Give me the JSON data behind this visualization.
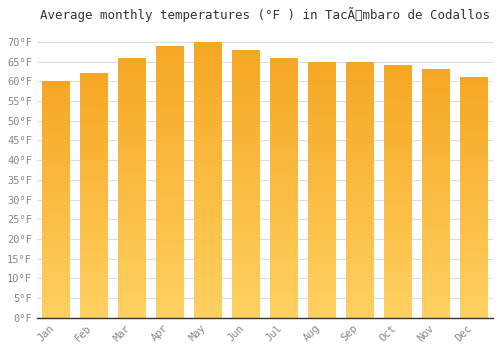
{
  "title": "Average monthly temperatures (°F ) in TacÃmbaro de Codallos",
  "months": [
    "Jan",
    "Feb",
    "Mar",
    "Apr",
    "May",
    "Jun",
    "Jul",
    "Aug",
    "Sep",
    "Oct",
    "Nov",
    "Dec"
  ],
  "values": [
    60,
    62,
    66,
    69,
    70,
    68,
    66,
    65,
    65,
    64,
    63,
    61
  ],
  "bar_color_top": "#F5A623",
  "bar_color_bottom": "#FFD060",
  "ylim": [
    0,
    73
  ],
  "yticks": [
    0,
    5,
    10,
    15,
    20,
    25,
    30,
    35,
    40,
    45,
    50,
    55,
    60,
    65,
    70
  ],
  "background_color": "#ffffff",
  "grid_color": "#dddddd",
  "title_fontsize": 9,
  "tick_fontsize": 7.5,
  "font_family": "monospace"
}
